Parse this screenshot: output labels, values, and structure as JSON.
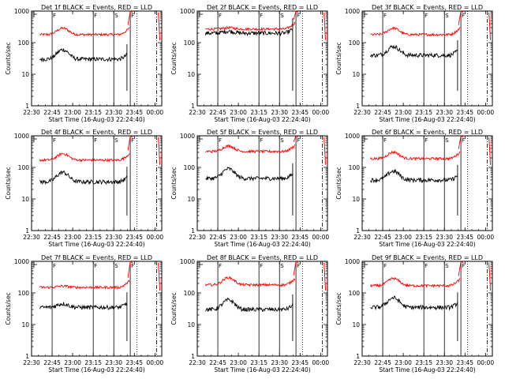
{
  "chart_data": {
    "type": "line",
    "y_scale": "log",
    "ylim": [
      1,
      1000
    ],
    "yticks": [
      "1",
      "10",
      "100",
      "1000"
    ],
    "xlim": [
      22.5,
      24.083
    ],
    "xticks": [
      "22:30",
      "22:45",
      "23:00",
      "23:15",
      "23:30",
      "23:45",
      "00:00"
    ],
    "xtick_values": [
      22.5,
      22.75,
      23.0,
      23.25,
      23.5,
      23.75,
      24.0
    ],
    "ylabel": "Counts/sec",
    "xlabel": "Start Time (16-Aug-03 22:24:40)",
    "series_names": [
      "Events",
      "LLD"
    ],
    "series_colors": {
      "Events": "#000000",
      "LLD": "#ff0000"
    },
    "solid_markers": [
      22.75,
      23.25,
      23.5,
      23.7
    ],
    "dotted_markers": [
      23.78
    ],
    "dashdot_markers": [
      24.02
    ],
    "marker_labels": [
      "F",
      "F",
      "S",
      "F"
    ],
    "panels": [
      {
        "title": "Det 1f BLACK = Events, RED = LLD",
        "events_base": 30,
        "events_bump": 2.0,
        "lld_base": 180,
        "lld_bump": 1.6,
        "start": 22.5,
        "flat": false
      },
      {
        "title": "Det 2f BLACK = Events, RED = LLD",
        "events_base": 200,
        "events_bump": 1.15,
        "lld_base": 270,
        "lld_bump": 1.1,
        "start": 22.5,
        "flat": true
      },
      {
        "title": "Det 3f BLACK = Events, RED = LLD",
        "events_base": 40,
        "events_bump": 1.9,
        "lld_base": 180,
        "lld_bump": 1.6,
        "start": 22.5,
        "flat": false
      },
      {
        "title": "Det 4f BLACK = Events, RED = LLD",
        "events_base": 35,
        "events_bump": 2.0,
        "lld_base": 170,
        "lld_bump": 1.6,
        "start": 22.5,
        "flat": false
      },
      {
        "title": "Det 5f BLACK = Events, RED = LLD",
        "events_base": 45,
        "events_bump": 2.0,
        "lld_base": 320,
        "lld_bump": 1.5,
        "start": 22.5,
        "flat": false
      },
      {
        "title": "Det 6f BLACK = Events, RED = LLD",
        "events_base": 40,
        "events_bump": 1.9,
        "lld_base": 190,
        "lld_bump": 1.6,
        "start": 22.5,
        "flat": false
      },
      {
        "title": "Det 7f BLACK = Events, RED = LLD",
        "events_base": 35,
        "events_bump": 1.3,
        "lld_base": 150,
        "lld_bump": 1.1,
        "start": 22.5,
        "flat": false
      },
      {
        "title": "Det 8f BLACK = Events, RED = LLD",
        "events_base": 30,
        "events_bump": 2.0,
        "lld_base": 180,
        "lld_bump": 1.7,
        "start": 22.5,
        "flat": false
      },
      {
        "title": "Det 9f BLACK = Events, RED = LLD",
        "events_base": 35,
        "events_bump": 2.0,
        "lld_base": 170,
        "lld_bump": 1.7,
        "start": 22.5,
        "flat": false
      }
    ]
  }
}
